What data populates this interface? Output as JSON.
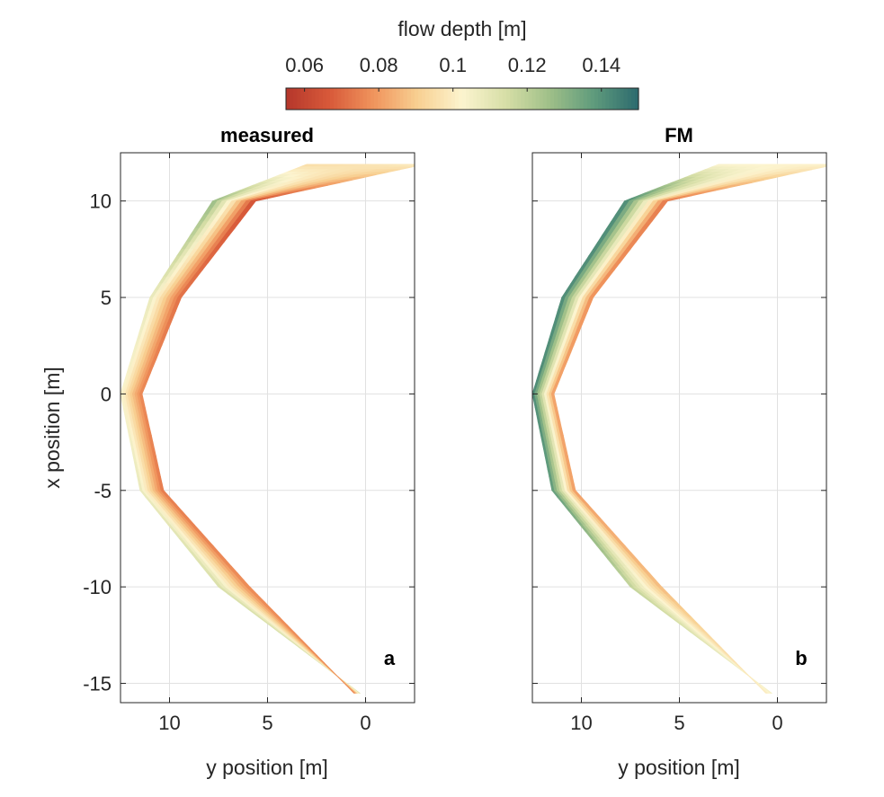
{
  "colors": {
    "colormap": [
      "#b5362b",
      "#d85a3a",
      "#f0955d",
      "#f8d092",
      "#fcf4cf",
      "#d6dea6",
      "#9ebf88",
      "#5e9a7c",
      "#2c6a6e"
    ],
    "grid": "#e1e1e1",
    "axis": "#262626"
  },
  "colorbar": {
    "title": "flow depth [m]",
    "range": [
      0.055,
      0.15
    ],
    "ticks": [
      0.06,
      0.08,
      0.1,
      0.12,
      0.14
    ],
    "tick_labels": [
      "0.06",
      "0.08",
      "0.1",
      "0.12",
      "0.14"
    ]
  },
  "chart_data": [
    {
      "type": "heatmap",
      "title": "measured",
      "panel_letter": "a",
      "xlabel": "y position [m]",
      "ylabel": "x position [m]",
      "xlim": [
        12.5,
        -2.5
      ],
      "ylim": [
        -16,
        12.5
      ],
      "xticks": [
        10,
        5,
        0
      ],
      "xtick_labels": [
        "10",
        "5",
        "0"
      ],
      "yticks": [
        10,
        5,
        0,
        -5,
        -10,
        -15
      ],
      "ytick_labels": [
        "10",
        "5",
        "0",
        "-5",
        "-10",
        "-15"
      ],
      "grid": true,
      "channel_stations": [
        {
          "x": 11.9,
          "y_outer": 3.0,
          "y_inner": -3.0,
          "depth_outer": 0.094,
          "depth_inner": 0.1
        },
        {
          "x": 10.0,
          "y_outer": 7.8,
          "y_inner": 5.6,
          "depth_outer": 0.13,
          "depth_inner": 0.062
        },
        {
          "x": 5.0,
          "y_outer": 11.0,
          "y_inner": 9.4,
          "depth_outer": 0.11,
          "depth_inner": 0.07
        },
        {
          "x": 0.0,
          "y_outer": 12.5,
          "y_inner": 11.4,
          "depth_outer": 0.105,
          "depth_inner": 0.075
        },
        {
          "x": -5.0,
          "y_outer": 11.5,
          "y_inner": 10.3,
          "depth_outer": 0.11,
          "depth_inner": 0.072
        },
        {
          "x": -10.0,
          "y_outer": 7.5,
          "y_inner": 5.9,
          "depth_outer": 0.115,
          "depth_inner": 0.075
        },
        {
          "x": -15.5,
          "y_outer": 0.3,
          "y_inner": 0.6,
          "depth_outer": 0.115,
          "depth_inner": 0.075
        }
      ]
    },
    {
      "type": "heatmap",
      "title": "FM",
      "panel_letter": "b",
      "xlabel": "y position [m]",
      "ylabel": "",
      "xlim": [
        12.5,
        -2.5
      ],
      "ylim": [
        -16,
        12.5
      ],
      "xticks": [
        10,
        5,
        0
      ],
      "xtick_labels": [
        "10",
        "5",
        "0"
      ],
      "yticks": [
        10,
        5,
        0,
        -5,
        -10,
        -15
      ],
      "ytick_labels": [
        "",
        "",
        "",
        "",
        "",
        ""
      ],
      "grid": true,
      "channel_stations": [
        {
          "x": 11.9,
          "y_outer": 3.0,
          "y_inner": -3.0,
          "depth_outer": 0.102,
          "depth_inner": 0.102
        },
        {
          "x": 10.0,
          "y_outer": 7.8,
          "y_inner": 5.6,
          "depth_outer": 0.145,
          "depth_inner": 0.07
        },
        {
          "x": 5.0,
          "y_outer": 11.0,
          "y_inner": 9.4,
          "depth_outer": 0.145,
          "depth_inner": 0.075
        },
        {
          "x": 0.0,
          "y_outer": 12.5,
          "y_inner": 11.4,
          "depth_outer": 0.145,
          "depth_inner": 0.078
        },
        {
          "x": -5.0,
          "y_outer": 11.5,
          "y_inner": 10.3,
          "depth_outer": 0.14,
          "depth_inner": 0.078
        },
        {
          "x": -10.0,
          "y_outer": 7.5,
          "y_inner": 5.9,
          "depth_outer": 0.12,
          "depth_inner": 0.085
        },
        {
          "x": -15.5,
          "y_outer": 0.3,
          "y_inner": 0.6,
          "depth_outer": 0.105,
          "depth_inner": 0.1
        }
      ]
    }
  ]
}
